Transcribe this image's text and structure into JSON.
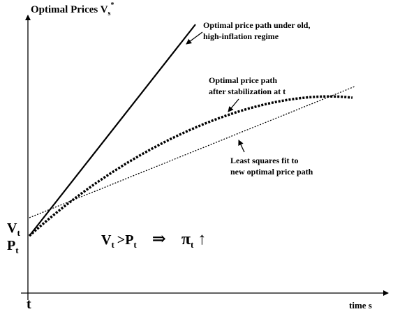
{
  "y_axis_label": {
    "main": "Optimal Prices V",
    "sub": "s",
    "sup": "*"
  },
  "x_axis_label": "time  s",
  "x_origin_label": "t",
  "y_labels": [
    {
      "main": "V",
      "sub": "t"
    },
    {
      "main": "P",
      "sub": "t"
    }
  ],
  "annotations": [
    [
      "Optimal price path under old,",
      "high-inflation regime"
    ],
    [
      "Optimal price path",
      "after stabilization at t"
    ],
    [
      "Least squares fit to",
      "new optimal price path"
    ]
  ],
  "equation": {
    "left": "V",
    "left_sub": "t",
    "op": ">",
    "right": "P",
    "right_sub": "t",
    "implies": "⇒",
    "result": "π",
    "result_sub": "t",
    "arrow": "↑"
  }
}
